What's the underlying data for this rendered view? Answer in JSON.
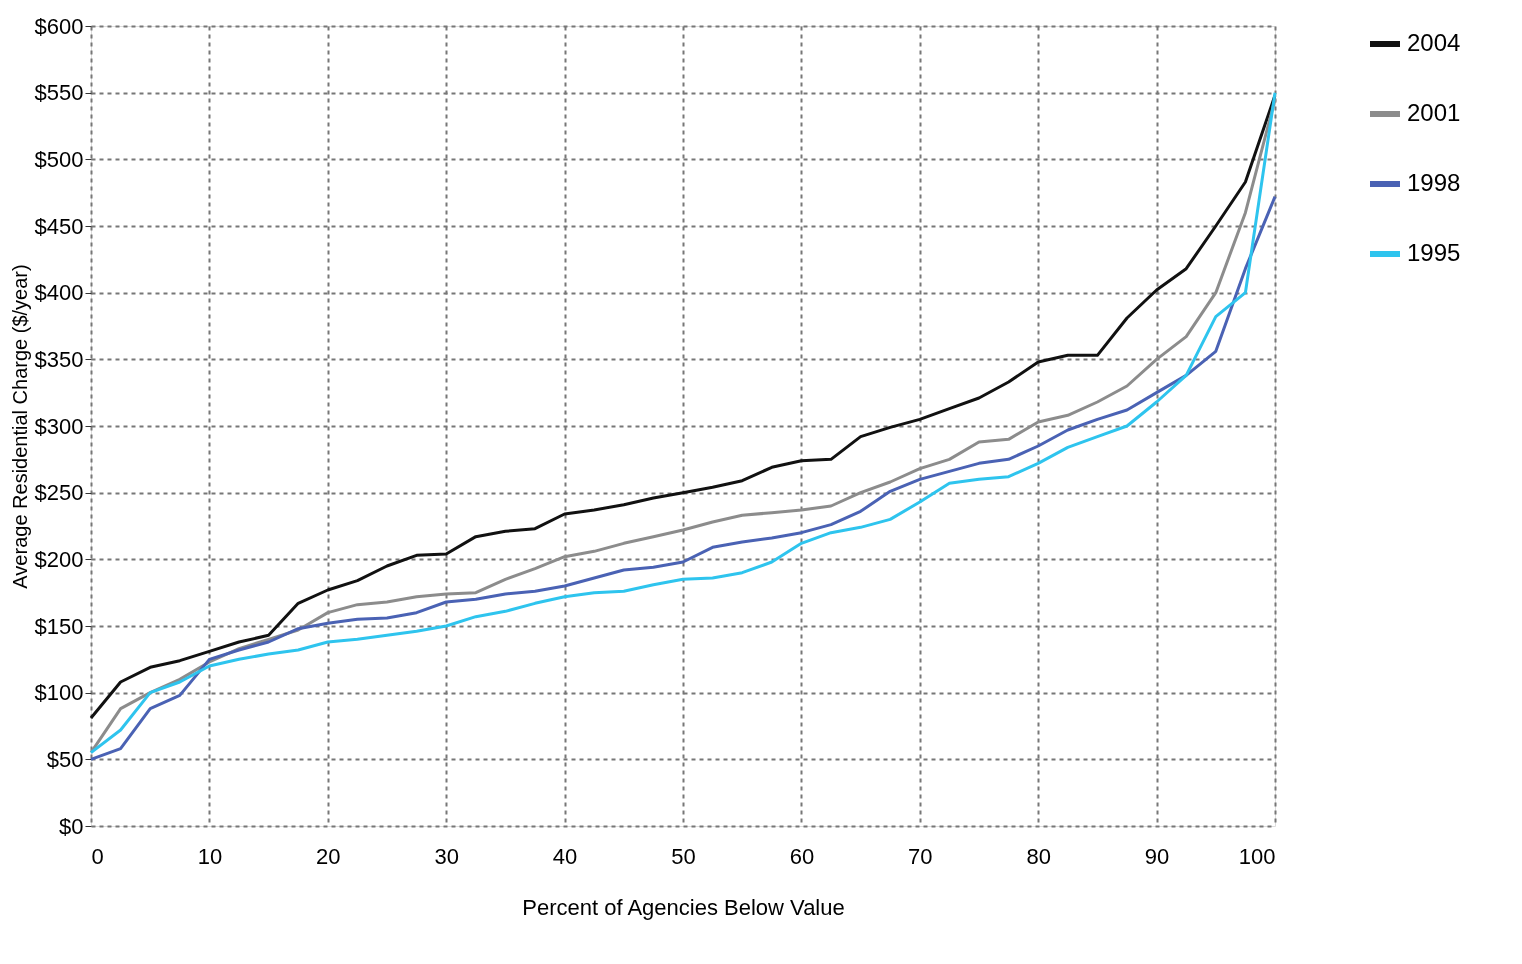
{
  "chart_data": {
    "type": "line",
    "xlabel": "Percent of Agencies Below Value",
    "ylabel": "Average Residential Charge ($/year)",
    "x": [
      0,
      2.5,
      5,
      7.5,
      10,
      12.5,
      15,
      17.5,
      20,
      22.5,
      25,
      27.5,
      30,
      32.5,
      35,
      37.5,
      40,
      42.5,
      45,
      47.5,
      50,
      52.5,
      55,
      57.5,
      60,
      62.5,
      65,
      67.5,
      70,
      72.5,
      75,
      77.5,
      80,
      82.5,
      85,
      87.5,
      90,
      92.5,
      95,
      97.5,
      100
    ],
    "series": [
      {
        "name": "2004",
        "color": "#111111",
        "values": [
          81,
          108,
          119,
          124,
          131,
          138,
          143,
          167,
          177,
          184,
          195,
          203,
          204,
          217,
          221,
          223,
          234,
          237,
          241,
          246,
          250,
          254,
          259,
          269,
          274,
          275,
          292,
          299,
          305,
          313,
          321,
          333,
          348,
          353,
          353,
          381,
          402,
          418,
          450,
          483,
          548
        ]
      },
      {
        "name": "2001",
        "color": "#8c8c8c",
        "values": [
          55,
          88,
          100,
          110,
          123,
          133,
          140,
          147,
          160,
          166,
          168,
          172,
          174,
          175,
          185,
          193,
          202,
          206,
          212,
          217,
          222,
          228,
          233,
          235,
          237,
          240,
          250,
          258,
          268,
          275,
          288,
          290,
          303,
          308,
          318,
          330,
          350,
          367,
          400,
          460,
          545
        ]
      },
      {
        "name": "1998",
        "color": "#4a62b4",
        "values": [
          50,
          58,
          88,
          98,
          125,
          132,
          138,
          148,
          152,
          155,
          156,
          160,
          168,
          170,
          174,
          176,
          180,
          186,
          192,
          194,
          198,
          209,
          213,
          216,
          220,
          226,
          236,
          251,
          260,
          266,
          272,
          275,
          285,
          297,
          305,
          312,
          325,
          338,
          356,
          418,
          472
        ]
      },
      {
        "name": "1995",
        "color": "#2ec4ee",
        "values": [
          55,
          72,
          100,
          108,
          120,
          125,
          129,
          132,
          138,
          140,
          143,
          146,
          150,
          157,
          161,
          167,
          172,
          175,
          176,
          181,
          185,
          186,
          190,
          198,
          212,
          220,
          224,
          230,
          243,
          257,
          260,
          262,
          272,
          284,
          292,
          300,
          318,
          338,
          382,
          400,
          550
        ]
      }
    ],
    "xlim": [
      0,
      100
    ],
    "xticks": [
      0,
      10,
      20,
      30,
      40,
      50,
      60,
      70,
      80,
      90,
      100
    ],
    "ylim": [
      0,
      600
    ],
    "yticks": [
      {
        "value": 0,
        "label": "$0"
      },
      {
        "value": 50,
        "label": "$50"
      },
      {
        "value": 100,
        "label": "$100"
      },
      {
        "value": 150,
        "label": "$150"
      },
      {
        "value": 200,
        "label": "$200"
      },
      {
        "value": 250,
        "label": "$250"
      },
      {
        "value": 300,
        "label": "$300"
      },
      {
        "value": 350,
        "label": "$350"
      },
      {
        "value": 400,
        "label": "$400"
      },
      {
        "value": 450,
        "label": "$450"
      },
      {
        "value": 500,
        "label": "$500"
      },
      {
        "value": 550,
        "label": "$550"
      },
      {
        "value": 600,
        "label": "$600"
      }
    ],
    "grid": true,
    "legend": "right",
    "marker": "none",
    "line_style": "solid"
  }
}
